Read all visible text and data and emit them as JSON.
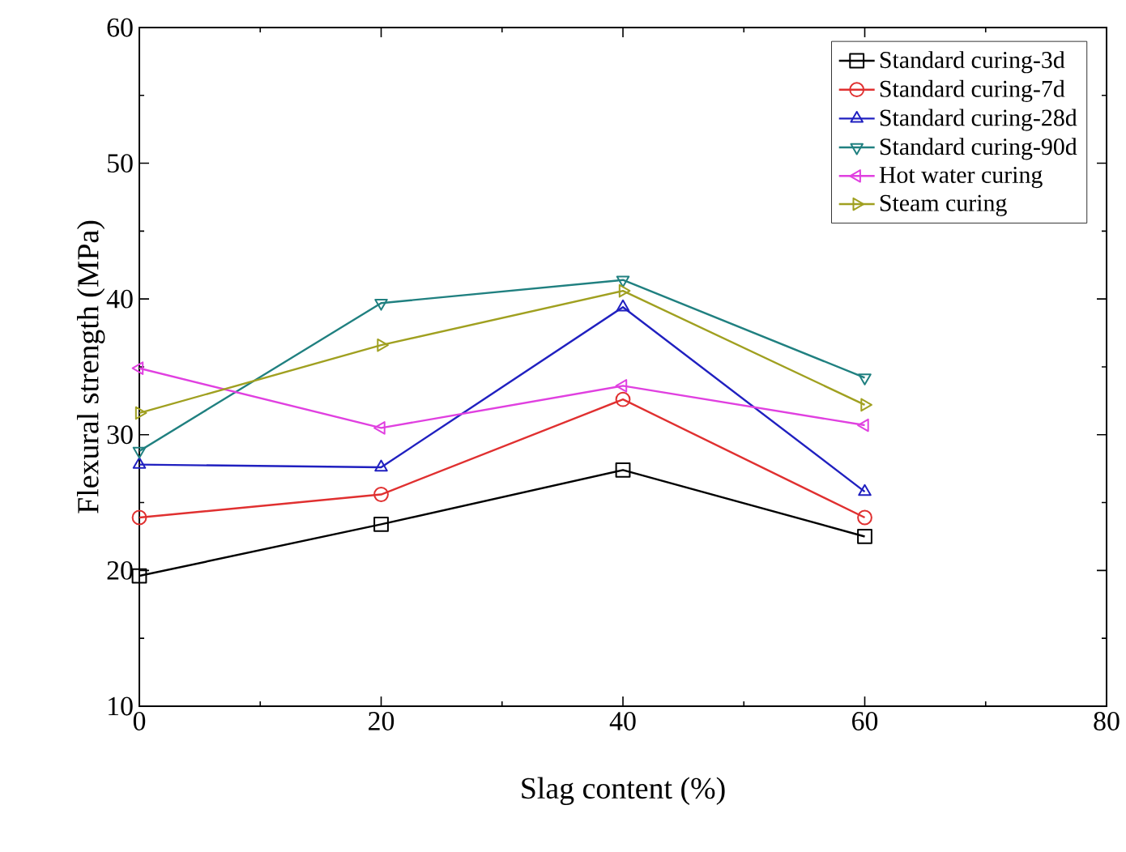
{
  "chart_data": {
    "type": "line",
    "xlabel": "Slag content (%)",
    "ylabel": "Flexural strength (MPa)",
    "x": [
      0,
      20,
      40,
      60
    ],
    "series": [
      {
        "name": "Standard curing-3d",
        "color": "#000000",
        "marker": "square",
        "values": [
          19.6,
          23.4,
          27.4,
          22.5
        ]
      },
      {
        "name": "Standard curing-7d",
        "color": "#e03030",
        "marker": "circle",
        "values": [
          23.9,
          25.6,
          32.6,
          23.9
        ]
      },
      {
        "name": "Standard curing-28d",
        "color": "#2020c0",
        "marker": "triangle",
        "values": [
          27.8,
          27.6,
          39.4,
          25.8
        ]
      },
      {
        "name": "Standard curing-90d",
        "color": "#208080",
        "marker": "triangle-down",
        "values": [
          28.8,
          39.7,
          41.4,
          34.2
        ]
      },
      {
        "name": "Hot water curing",
        "color": "#e040e0",
        "marker": "triangle-left",
        "values": [
          34.9,
          30.5,
          33.6,
          30.7
        ]
      },
      {
        "name": "Steam curing",
        "color": "#a0a020",
        "marker": "triangle-right",
        "values": [
          31.6,
          36.6,
          40.6,
          32.2
        ]
      }
    ],
    "xlim": [
      0,
      80
    ],
    "ylim": [
      10,
      60
    ],
    "xticks": [
      0,
      20,
      40,
      60,
      80
    ],
    "yticks": [
      10,
      20,
      30,
      40,
      50,
      60
    ],
    "legend": "top right",
    "line_style": "solid"
  }
}
